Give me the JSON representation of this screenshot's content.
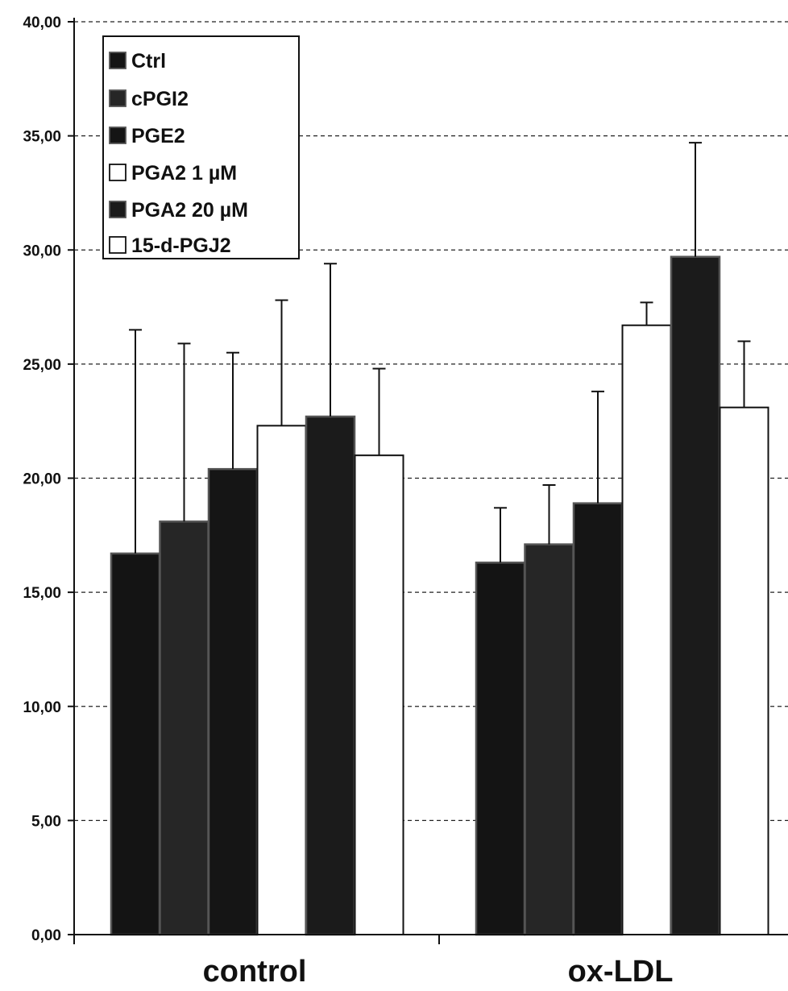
{
  "chart_data": {
    "type": "bar",
    "categories": [
      "control",
      "ox-LDL"
    ],
    "ylim": [
      0,
      40
    ],
    "yticks": [
      "0,00",
      "5,00",
      "10,00",
      "15,00",
      "20,00",
      "25,00",
      "30,00",
      "35,00",
      "40,00"
    ],
    "grid": true,
    "legend_position": "top-left",
    "series": [
      {
        "name": "Ctrl",
        "color": "#141414",
        "values": [
          16.7,
          16.3
        ],
        "errors": [
          9.8,
          2.4
        ]
      },
      {
        "name": "cPGI2",
        "color": "#262626",
        "values": [
          18.1,
          17.1
        ],
        "errors": [
          7.8,
          2.6
        ]
      },
      {
        "name": "PGE2",
        "color": "#151515",
        "values": [
          20.4,
          18.9
        ],
        "errors": [
          5.1,
          4.9
        ]
      },
      {
        "name": "PGA2 1 µM",
        "color": "#ffffff",
        "values": [
          22.3,
          26.7
        ],
        "errors": [
          5.5,
          1.0
        ]
      },
      {
        "name": "PGA2 20 µM",
        "color": "#1b1b1b",
        "values": [
          22.7,
          29.7
        ],
        "errors": [
          6.7,
          5.0
        ]
      },
      {
        "name": "15-d-PGJ2",
        "color": "#ffffff",
        "values": [
          21.0,
          23.1
        ],
        "errors": [
          3.8,
          2.9
        ]
      }
    ]
  }
}
